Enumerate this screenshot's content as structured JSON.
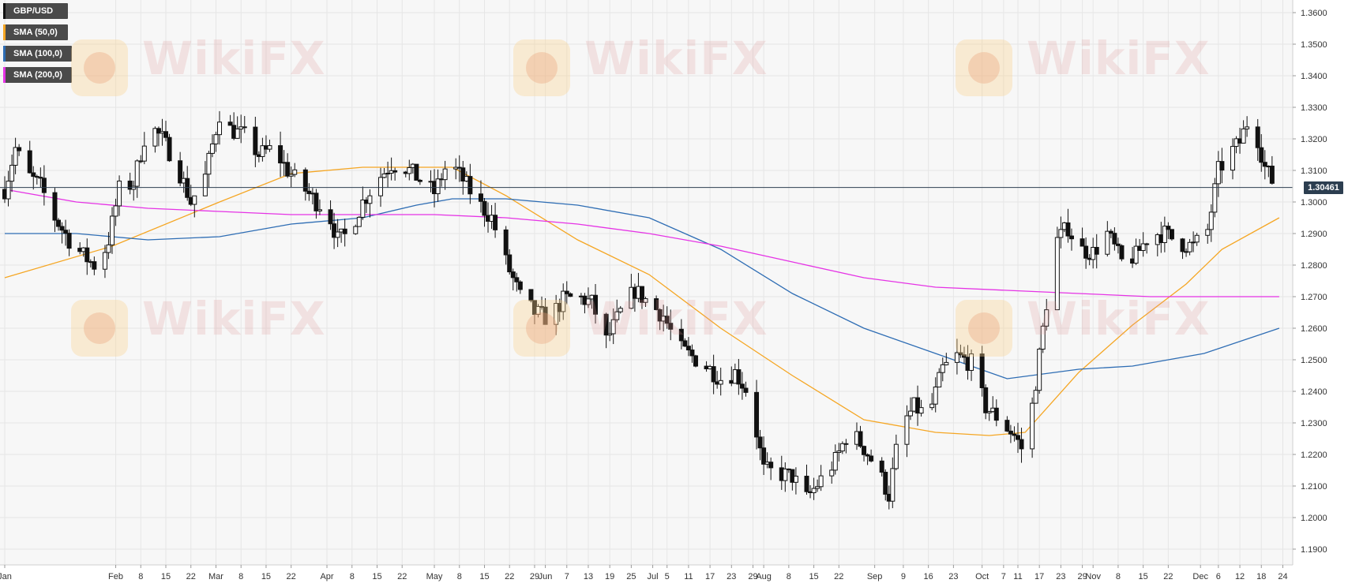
{
  "legend": [
    {
      "label": "GBP/USD",
      "color": "#111111"
    },
    {
      "label": "SMA (50,0)",
      "color": "#f5a623"
    },
    {
      "label": "SMA (100,0)",
      "color": "#2e6db4"
    },
    {
      "label": "SMA (200,0)",
      "color": "#e533e5"
    }
  ],
  "watermark": {
    "text": "WikiFX"
  },
  "current_price_label": "1.30461",
  "chart_data": {
    "type": "candlestick",
    "symbol": "GBP/USD",
    "y_axis_ticks": [
      "1.3600",
      "1.3500",
      "1.3400",
      "1.3300",
      "1.3200",
      "1.3100",
      "1.3000",
      "1.2900",
      "1.2800",
      "1.2700",
      "1.2600",
      "1.2500",
      "1.2400",
      "1.2300",
      "1.2200",
      "1.2100",
      "1.2000",
      "1.1900"
    ],
    "ylim": [
      1.185,
      1.364
    ],
    "x_axis_ticks": [
      {
        "label": "Jan",
        "day": 0
      },
      {
        "label": "Feb",
        "day": 31
      },
      {
        "label": "8",
        "day": 38
      },
      {
        "label": "15",
        "day": 45
      },
      {
        "label": "22",
        "day": 52
      },
      {
        "label": "Mar",
        "day": 59
      },
      {
        "label": "8",
        "day": 66
      },
      {
        "label": "15",
        "day": 73
      },
      {
        "label": "22",
        "day": 80
      },
      {
        "label": "Apr",
        "day": 90
      },
      {
        "label": "8",
        "day": 97
      },
      {
        "label": "15",
        "day": 104
      },
      {
        "label": "22",
        "day": 111
      },
      {
        "label": "May",
        "day": 120
      },
      {
        "label": "8",
        "day": 127
      },
      {
        "label": "15",
        "day": 134
      },
      {
        "label": "22",
        "day": 141
      },
      {
        "label": "29",
        "day": 148
      },
      {
        "label": "Jun",
        "day": 151
      },
      {
        "label": "7",
        "day": 157
      },
      {
        "label": "13",
        "day": 163
      },
      {
        "label": "19",
        "day": 169
      },
      {
        "label": "25",
        "day": 175
      },
      {
        "label": "Jul",
        "day": 181
      },
      {
        "label": "5",
        "day": 185
      },
      {
        "label": "11",
        "day": 191
      },
      {
        "label": "17",
        "day": 197
      },
      {
        "label": "23",
        "day": 203
      },
      {
        "label": "29",
        "day": 209
      },
      {
        "label": "Aug",
        "day": 212
      },
      {
        "label": "8",
        "day": 219
      },
      {
        "label": "15",
        "day": 226
      },
      {
        "label": "22",
        "day": 233
      },
      {
        "label": "Sep",
        "day": 243
      },
      {
        "label": "9",
        "day": 251
      },
      {
        "label": "16",
        "day": 258
      },
      {
        "label": "23",
        "day": 265
      },
      {
        "label": "Oct",
        "day": 273
      },
      {
        "label": "7",
        "day": 279
      },
      {
        "label": "11",
        "day": 283
      },
      {
        "label": "17",
        "day": 289
      },
      {
        "label": "23",
        "day": 295
      },
      {
        "label": "29",
        "day": 301
      },
      {
        "label": "Nov",
        "day": 304
      },
      {
        "label": "8",
        "day": 311
      },
      {
        "label": "15",
        "day": 318
      },
      {
        "label": "22",
        "day": 325
      },
      {
        "label": "Dec",
        "day": 334
      },
      {
        "label": "6",
        "day": 339
      },
      {
        "label": "12",
        "day": 345
      },
      {
        "label": "18",
        "day": 351
      },
      {
        "label": "24",
        "day": 357
      }
    ],
    "x_range_days": [
      0,
      358
    ],
    "last_close": 1.3046,
    "price_anchors": [
      [
        0,
        1.304
      ],
      [
        3,
        1.317
      ],
      [
        6,
        1.309
      ],
      [
        10,
        1.305
      ],
      [
        14,
        1.295
      ],
      [
        18,
        1.288
      ],
      [
        22,
        1.283
      ],
      [
        26,
        1.279
      ],
      [
        29,
        1.288
      ],
      [
        32,
        1.304
      ],
      [
        36,
        1.306
      ],
      [
        40,
        1.325
      ],
      [
        44,
        1.32
      ],
      [
        48,
        1.312
      ],
      [
        52,
        1.3
      ],
      [
        56,
        1.308
      ],
      [
        60,
        1.328
      ],
      [
        63,
        1.323
      ],
      [
        67,
        1.321
      ],
      [
        71,
        1.315
      ],
      [
        75,
        1.317
      ],
      [
        79,
        1.31
      ],
      [
        83,
        1.305
      ],
      [
        87,
        1.3
      ],
      [
        90,
        1.298
      ],
      [
        93,
        1.288
      ],
      [
        96,
        1.29
      ],
      [
        100,
        1.3
      ],
      [
        104,
        1.307
      ],
      [
        108,
        1.312
      ],
      [
        112,
        1.311
      ],
      [
        116,
        1.307
      ],
      [
        120,
        1.303
      ],
      [
        124,
        1.313
      ],
      [
        128,
        1.307
      ],
      [
        132,
        1.3
      ],
      [
        136,
        1.295
      ],
      [
        140,
        1.281
      ],
      [
        144,
        1.27
      ],
      [
        148,
        1.265
      ],
      [
        152,
        1.263
      ],
      [
        156,
        1.269
      ],
      [
        160,
        1.27
      ],
      [
        164,
        1.268
      ],
      [
        168,
        1.256
      ],
      [
        172,
        1.265
      ],
      [
        176,
        1.272
      ],
      [
        180,
        1.268
      ],
      [
        184,
        1.264
      ],
      [
        188,
        1.254
      ],
      [
        192,
        1.251
      ],
      [
        196,
        1.248
      ],
      [
        200,
        1.244
      ],
      [
        204,
        1.246
      ],
      [
        208,
        1.239
      ],
      [
        212,
        1.215
      ],
      [
        216,
        1.214
      ],
      [
        220,
        1.213
      ],
      [
        224,
        1.206
      ],
      [
        228,
        1.212
      ],
      [
        232,
        1.218
      ],
      [
        236,
        1.228
      ],
      [
        240,
        1.222
      ],
      [
        244,
        1.215
      ],
      [
        247,
        1.207
      ],
      [
        250,
        1.228
      ],
      [
        254,
        1.235
      ],
      [
        258,
        1.232
      ],
      [
        262,
        1.247
      ],
      [
        266,
        1.251
      ],
      [
        270,
        1.249
      ],
      [
        274,
        1.235
      ],
      [
        278,
        1.231
      ],
      [
        282,
        1.226
      ],
      [
        285,
        1.22
      ],
      [
        288,
        1.243
      ],
      [
        291,
        1.268
      ],
      [
        294,
        1.288
      ],
      [
        297,
        1.292
      ],
      [
        300,
        1.285
      ],
      [
        304,
        1.284
      ],
      [
        308,
        1.29
      ],
      [
        312,
        1.281
      ],
      [
        316,
        1.283
      ],
      [
        320,
        1.29
      ],
      [
        324,
        1.29
      ],
      [
        328,
        1.287
      ],
      [
        332,
        1.286
      ],
      [
        336,
        1.291
      ],
      [
        339,
        1.31
      ],
      [
        342,
        1.315
      ],
      [
        345,
        1.319
      ],
      [
        348,
        1.328
      ],
      [
        350,
        1.32
      ],
      [
        352,
        1.311
      ],
      [
        355,
        1.3046
      ]
    ],
    "sma50": [
      [
        0,
        1.276
      ],
      [
        30,
        1.286
      ],
      [
        60,
        1.3
      ],
      [
        80,
        1.309
      ],
      [
        100,
        1.311
      ],
      [
        116,
        1.311
      ],
      [
        125,
        1.311
      ],
      [
        140,
        1.302
      ],
      [
        160,
        1.288
      ],
      [
        180,
        1.277
      ],
      [
        200,
        1.26
      ],
      [
        220,
        1.245
      ],
      [
        240,
        1.231
      ],
      [
        260,
        1.227
      ],
      [
        275,
        1.226
      ],
      [
        285,
        1.227
      ],
      [
        300,
        1.246
      ],
      [
        315,
        1.261
      ],
      [
        330,
        1.274
      ],
      [
        340,
        1.285
      ],
      [
        356,
        1.295
      ]
    ],
    "sma100": [
      [
        0,
        1.29
      ],
      [
        20,
        1.29
      ],
      [
        40,
        1.288
      ],
      [
        60,
        1.289
      ],
      [
        80,
        1.293
      ],
      [
        100,
        1.295
      ],
      [
        115,
        1.299
      ],
      [
        125,
        1.301
      ],
      [
        140,
        1.301
      ],
      [
        160,
        1.299
      ],
      [
        180,
        1.295
      ],
      [
        200,
        1.285
      ],
      [
        220,
        1.271
      ],
      [
        240,
        1.26
      ],
      [
        260,
        1.252
      ],
      [
        280,
        1.244
      ],
      [
        300,
        1.247
      ],
      [
        315,
        1.248
      ],
      [
        335,
        1.252
      ],
      [
        356,
        1.26
      ]
    ],
    "sma200": [
      [
        0,
        1.304
      ],
      [
        20,
        1.3
      ],
      [
        40,
        1.298
      ],
      [
        60,
        1.297
      ],
      [
        80,
        1.296
      ],
      [
        100,
        1.296
      ],
      [
        120,
        1.296
      ],
      [
        140,
        1.295
      ],
      [
        160,
        1.293
      ],
      [
        180,
        1.29
      ],
      [
        200,
        1.286
      ],
      [
        220,
        1.281
      ],
      [
        240,
        1.276
      ],
      [
        260,
        1.273
      ],
      [
        280,
        1.272
      ],
      [
        300,
        1.271
      ],
      [
        320,
        1.27
      ],
      [
        340,
        1.27
      ],
      [
        356,
        1.27
      ]
    ]
  }
}
